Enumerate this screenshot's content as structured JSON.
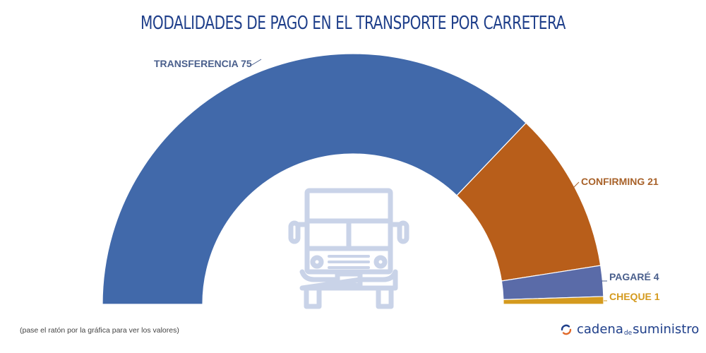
{
  "page": {
    "title": "MODALIDADES DE PAGO EN EL TRANSPORTE POR CARRETERA",
    "footnote": "(pase el ratón por la gráfica para ver los valores)",
    "logo": {
      "part1": "cadena",
      "part2": "de",
      "part3": "suministro",
      "icon": "refresh-arrows-icon"
    },
    "center_icon": "truck-front-icon"
  },
  "chart_data": {
    "type": "pie",
    "variant": "half-donut",
    "title": "MODALIDADES DE PAGO EN EL TRANSPORTE POR CARRETERA",
    "slices": [
      {
        "label": "TRANSFERENCIA",
        "value": 75,
        "color": "#4169aa",
        "text_color": "#4a5f8c",
        "display": "TRANSFERENCIA 75"
      },
      {
        "label": "CONFIRMING",
        "value": 21,
        "color": "#b85e1a",
        "text_color": "#a8622a",
        "display": "CONFIRMING 21"
      },
      {
        "label": "PAGARÉ",
        "value": 4,
        "color": "#5a6ba8",
        "text_color": "#4a5f8c",
        "display": "PAGARÉ 4"
      },
      {
        "label": "CHEQUE",
        "value": 1,
        "color": "#d49a1e",
        "text_color": "#d49a1e",
        "display": "CHEQUE 1"
      }
    ],
    "legend": "none"
  }
}
